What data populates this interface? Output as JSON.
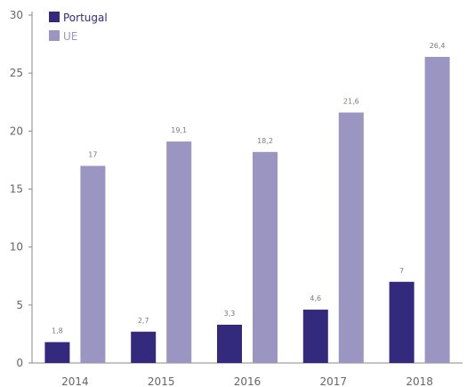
{
  "chart_data": {
    "type": "bar",
    "title": "",
    "xlabel": "",
    "ylabel": "",
    "categories": [
      "2014",
      "2015",
      "2016",
      "2017",
      "2018"
    ],
    "series": [
      {
        "name": "Portugal",
        "values": [
          1.8,
          2.7,
          3.3,
          4.6,
          7
        ],
        "labels": [
          "1,8",
          "2,7",
          "3,3",
          "4,6",
          "7"
        ],
        "color": "#332a7e"
      },
      {
        "name": "UE",
        "values": [
          17,
          19.1,
          18.2,
          21.6,
          26.4
        ],
        "labels": [
          "17",
          "19,1",
          "18,2",
          "21,6",
          "26,4"
        ],
        "color": "#9b95c2"
      }
    ],
    "ylim": [
      0,
      30
    ],
    "yticks": [
      0,
      5,
      10,
      15,
      20,
      25,
      30
    ],
    "grid": false,
    "legend": "top-left"
  },
  "colors": {
    "axis": "#8a8a8a",
    "tick_text": "#666666",
    "portugal_legend_text": "#332a7e",
    "ue_legend_text": "#9b95c2"
  }
}
